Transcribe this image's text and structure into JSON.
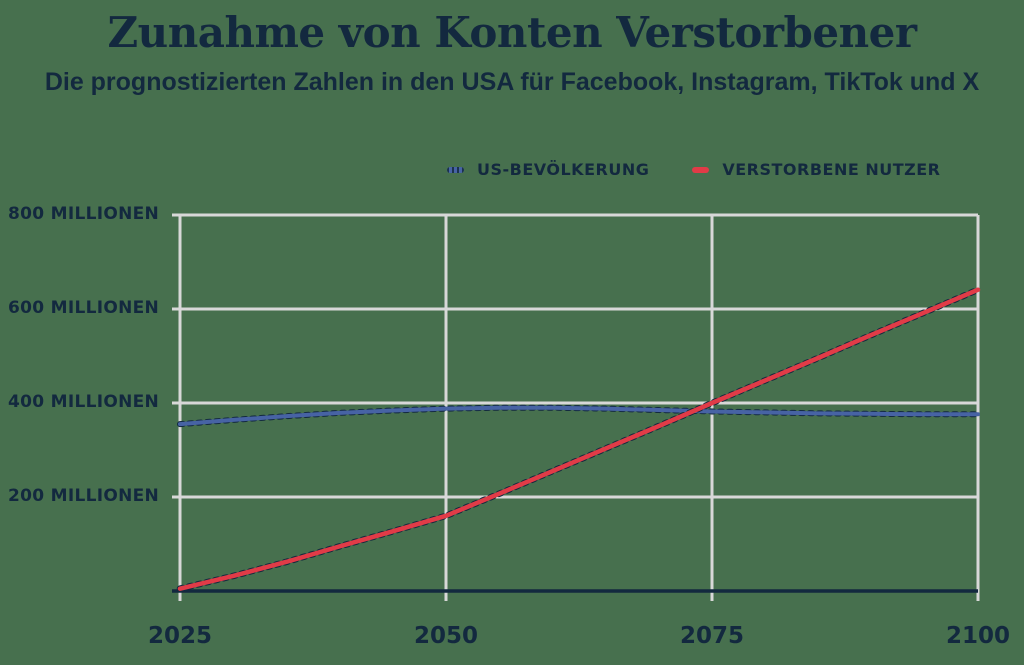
{
  "page": {
    "background_color": "#47704E",
    "text_color": "#13293F"
  },
  "chart_data": {
    "type": "line",
    "title": "Zunahme von Konten Verstorbener",
    "subtitle": "Die prognostizierten Zahlen in den USA für Facebook, Instagram, TikTok und X",
    "unit": "Millionen",
    "x": [
      2025,
      2030,
      2035,
      2040,
      2045,
      2050,
      2055,
      2060,
      2065,
      2070,
      2075,
      2080,
      2085,
      2090,
      2095,
      2100
    ],
    "series": [
      {
        "name": "US-BEVÖLKERUNG",
        "color": "#4763A4",
        "line_style": "solid-with-dark-dots",
        "values": [
          355,
          364,
          372,
          379,
          384,
          388,
          390,
          390,
          388,
          385,
          382,
          380,
          378,
          377,
          376,
          376
        ]
      },
      {
        "name": "VERSTORBENE NUTZER",
        "color": "#E13B47",
        "line_style": "solid-with-dark-dots",
        "values": [
          5,
          32,
          62,
          95,
          127,
          160,
          207,
          255,
          303,
          351,
          400,
          448,
          496,
          545,
          593,
          641
        ]
      }
    ],
    "xlim": [
      2025,
      2100
    ],
    "ylim": [
      0,
      800
    ],
    "y_ticks": [
      {
        "value": 800,
        "label": "800 MILLIONEN"
      },
      {
        "value": 600,
        "label": "600 MILLIONEN"
      },
      {
        "value": 400,
        "label": "400 MILLIONEN"
      },
      {
        "value": 200,
        "label": "200 MILLIONEN"
      }
    ],
    "x_ticks": [
      {
        "value": 2025,
        "label": "2025"
      },
      {
        "value": 2050,
        "label": "2050"
      },
      {
        "value": 2075,
        "label": "2075"
      },
      {
        "value": 2100,
        "label": "2100"
      }
    ],
    "grid": true,
    "gridline_color": "#D8D8D8",
    "axis_color": "#13293F",
    "legend_position": "top-right"
  }
}
